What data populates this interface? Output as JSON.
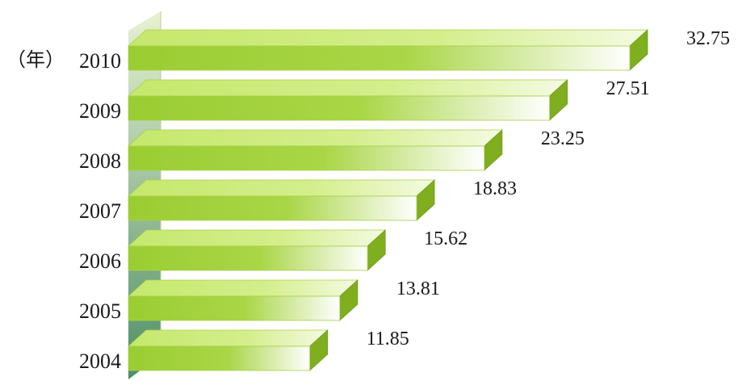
{
  "chart_data": {
    "type": "bar",
    "orientation": "horizontal",
    "style": "3d",
    "title": "",
    "xlabel": "",
    "ylabel": "（年）",
    "categories": [
      "2010",
      "2009",
      "2008",
      "2007",
      "2006",
      "2005",
      "2004"
    ],
    "values": [
      32.75,
      27.51,
      23.25,
      18.83,
      15.62,
      13.81,
      11.85
    ],
    "value_labels": [
      "32.75",
      "27.51",
      "23.25",
      "18.83",
      "15.62",
      "13.81",
      "11.85"
    ],
    "xlim": [
      0,
      32.75
    ],
    "grid": false,
    "legend": "none",
    "colors": {
      "bar_front": "#9acd32",
      "bar_top": "#c5e86c",
      "bar_side": "#7fae1e",
      "bar_fade": "#ffffff",
      "axis_wall_top": "#e4efc9",
      "axis_wall_bottom": "#2f7a4a"
    }
  }
}
